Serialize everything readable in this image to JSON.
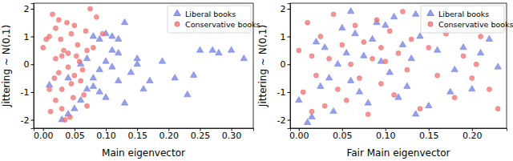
{
  "chart_data": [
    {
      "type": "scatter",
      "x_label": "Main eigenvector",
      "y_label": "Jittering ~ N(0,1)",
      "xlim": [
        -0.015,
        0.335
      ],
      "xticks": [
        {
          "value": 0,
          "label": "0.00"
        },
        {
          "value": 0.05,
          "label": "0.05"
        },
        {
          "value": 0.1,
          "label": "0.10"
        },
        {
          "value": 0.15,
          "label": "0.15"
        },
        {
          "value": 0.2,
          "label": "0.20"
        },
        {
          "value": 0.25,
          "label": "0.25"
        },
        {
          "value": 0.3,
          "label": "0.30"
        }
      ],
      "ylim": [
        -2.3,
        2.2
      ],
      "yticks": [
        -2,
        -1,
        0,
        1,
        2
      ],
      "legend": "upper right",
      "series": [
        {
          "name": "Liberal books",
          "color": "#7280e0",
          "marker": "triangle",
          "x": [
            0.01,
            0.03,
            0.04,
            0.05,
            0.06,
            0.07,
            0.08,
            0.09,
            0.1,
            0.11,
            0.12,
            0.13,
            0.1,
            0.09,
            0.08,
            0.11,
            0.12,
            0.14,
            0.15,
            0.16,
            0.17,
            0.19,
            0.21,
            0.23,
            0.24,
            0.25,
            0.27,
            0.28,
            0.3,
            0.32,
            0.06,
            0.07,
            0.09,
            0.1,
            0.12,
            0.13,
            0.04,
            0.15,
            0.11,
            0.08
          ],
          "values": [
            -0.75,
            -2.0,
            -1.8,
            -1.6,
            -1.3,
            -0.9,
            -0.5,
            -0.2,
            0.1,
            0.5,
            0.9,
            1.5,
            1.1,
            0.9,
            1.0,
            1.0,
            0.4,
            -0.3,
            0.2,
            -0.9,
            -0.6,
            0.1,
            -0.5,
            -1.1,
            -0.4,
            0.5,
            0.5,
            0.4,
            0.5,
            0.2,
            0.0,
            0.2,
            -1.0,
            -1.2,
            -0.6,
            -1.4,
            -0.5,
            0.0,
            -0.1,
            -0.8
          ]
        },
        {
          "name": "Conservative books",
          "color": "#f07070",
          "marker": "circle",
          "x": [
            0.0,
            0.01,
            0.015,
            0.02,
            0.03,
            0.025,
            0.01,
            0.02,
            0.03,
            0.035,
            0.04,
            0.045,
            0.05,
            0.055,
            0.06,
            0.065,
            0.07,
            0.075,
            0.08,
            0.085,
            0.02,
            0.03,
            0.04,
            0.05,
            0.012,
            0.028,
            0.038,
            0.048,
            0.058,
            0.068,
            0.018,
            0.033,
            0.043,
            0.053,
            0.063,
            0.095,
            0.005,
            0.025,
            0.045,
            0.07
          ],
          "values": [
            0.6,
            1.0,
            1.8,
            1.3,
            0.3,
            -0.3,
            -0.9,
            -1.3,
            -1.6,
            -2.0,
            0.4,
            1.1,
            1.4,
            0.7,
            -0.6,
            -1.1,
            -1.5,
            2.0,
            0.6,
            1.7,
            0.2,
            -0.9,
            -0.1,
            -0.4,
            -1.7,
            0.9,
            1.5,
            -1.2,
            0.1,
            1.2,
            -0.5,
            0.5,
            -1.9,
            0.3,
            -0.2,
            1.1,
            0.9,
            1.6,
            -0.7,
            0.5
          ]
        }
      ]
    },
    {
      "type": "scatter",
      "x_label": "Fair Main eigenvector",
      "y_label": "Jittering ~ N(0,1)",
      "xlim": [
        -0.01,
        0.24
      ],
      "xticks": [
        {
          "value": 0,
          "label": "0.00"
        },
        {
          "value": 0.05,
          "label": "0.05"
        },
        {
          "value": 0.1,
          "label": "0.10"
        },
        {
          "value": 0.15,
          "label": "0.15"
        },
        {
          "value": 0.2,
          "label": "0.20"
        }
      ],
      "ylim": [
        -2.3,
        2.2
      ],
      "yticks": [
        -2,
        -1,
        0,
        1,
        2
      ],
      "legend": "upper right",
      "series": [
        {
          "name": "Liberal books",
          "color": "#7280e0",
          "marker": "triangle",
          "x": [
            0.0,
            0.01,
            0.015,
            0.02,
            0.03,
            0.035,
            0.04,
            0.05,
            0.055,
            0.06,
            0.065,
            0.07,
            0.075,
            0.08,
            0.085,
            0.09,
            0.095,
            0.1,
            0.105,
            0.11,
            0.115,
            0.12,
            0.125,
            0.13,
            0.14,
            0.15,
            0.16,
            0.17,
            0.18,
            0.19,
            0.2,
            0.21,
            0.22,
            0.23,
            0.045,
            0.025,
            0.135,
            0.135,
            0.175,
            0.06
          ],
          "values": [
            -1.3,
            -2.1,
            -1.9,
            0.8,
            0.6,
            -0.5,
            -1.7,
            1.3,
            0.4,
            -0.6,
            1.1,
            -1.0,
            0.3,
            -1.4,
            0.9,
            1.5,
            0.1,
            1.4,
            -0.3,
            1.7,
            -1.2,
            0.7,
            -0.8,
            0.2,
            1.0,
            -1.5,
            0.5,
            1.2,
            -0.2,
            0.6,
            -0.9,
            0.4,
            0.9,
            -0.1,
            0.0,
            -0.8,
            -1.8,
            1.8,
            -1.0,
            1.9
          ]
        },
        {
          "name": "Conservative books",
          "color": "#f07070",
          "marker": "circle",
          "x": [
            0.0,
            0.005,
            0.01,
            0.015,
            0.02,
            0.025,
            0.03,
            0.04,
            0.045,
            0.05,
            0.055,
            0.06,
            0.065,
            0.07,
            0.075,
            0.08,
            0.085,
            0.09,
            0.095,
            0.1,
            0.105,
            0.11,
            0.115,
            0.12,
            0.125,
            0.13,
            0.14,
            0.15,
            0.16,
            0.17,
            0.18,
            0.19,
            0.2,
            0.21,
            0.22,
            0.23,
            0.035,
            0.015,
            0.095,
            0.205
          ],
          "values": [
            0.5,
            -1.0,
            1.5,
            0.3,
            -0.4,
            1.0,
            -1.5,
            1.8,
            -0.9,
            0.7,
            -1.3,
            0.0,
            1.4,
            -0.5,
            0.8,
            -1.8,
            0.2,
            1.6,
            -0.7,
            0.1,
            1.2,
            -1.1,
            0.4,
            1.9,
            -0.2,
            0.9,
            -1.6,
            0.6,
            -0.4,
            1.1,
            -1.2,
            0.3,
            -0.5,
            1.0,
            -0.9,
            -1.6,
            0.2,
            -1.7,
            0.6,
            0.0
          ]
        }
      ]
    }
  ]
}
